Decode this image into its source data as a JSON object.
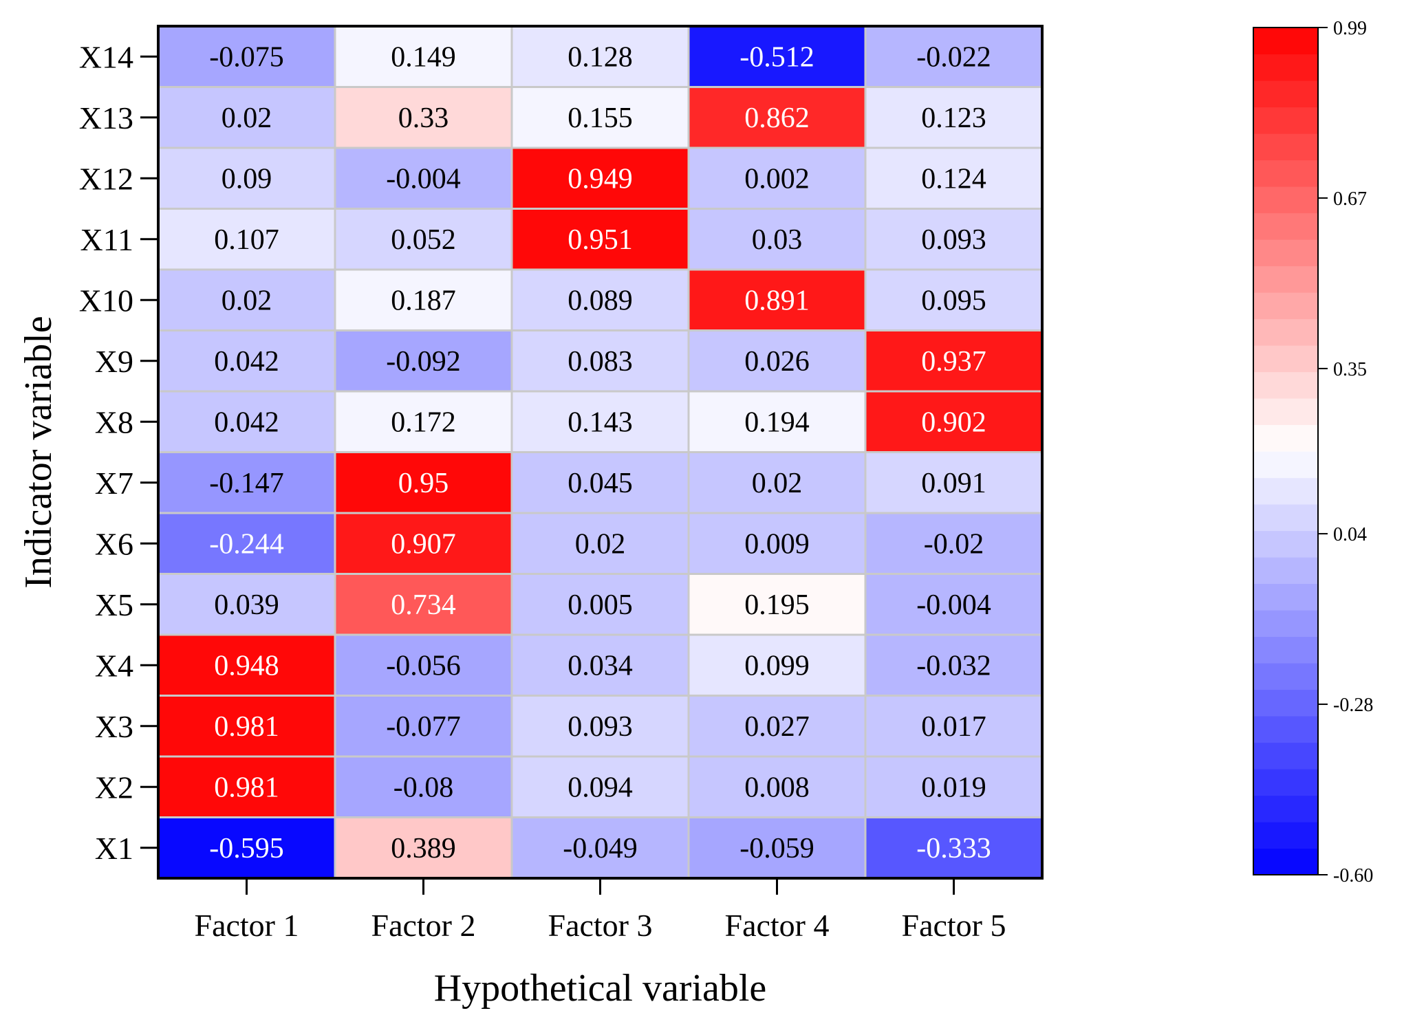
{
  "chart_data": {
    "type": "heatmap",
    "title": "",
    "xlabel": "Hypothetical variable",
    "ylabel": "Indicator variable",
    "columns": [
      "Factor 1",
      "Factor 2",
      "Factor 3",
      "Factor 4",
      "Factor 5"
    ],
    "rows": [
      "X14",
      "X13",
      "X12",
      "X11",
      "X10",
      "X9",
      "X8",
      "X7",
      "X6",
      "X5",
      "X4",
      "X3",
      "X2",
      "X1"
    ],
    "values": [
      [
        "-0.075",
        "0.149",
        "0.128",
        "-0.512",
        "-0.022"
      ],
      [
        "0.02",
        "0.33",
        "0.155",
        "0.862",
        "0.123"
      ],
      [
        "0.09",
        "-0.004",
        "0.949",
        "0.002",
        "0.124"
      ],
      [
        "0.107",
        "0.052",
        "0.951",
        "0.03",
        "0.093"
      ],
      [
        "0.02",
        "0.187",
        "0.089",
        "0.891",
        "0.095"
      ],
      [
        "0.042",
        "-0.092",
        "0.083",
        "0.026",
        "0.937"
      ],
      [
        "0.042",
        "0.172",
        "0.143",
        "0.194",
        "0.902"
      ],
      [
        "-0.147",
        "0.95",
        "0.045",
        "0.02",
        "0.091"
      ],
      [
        "-0.244",
        "0.907",
        "0.02",
        "0.009",
        "-0.02"
      ],
      [
        "0.039",
        "0.734",
        "0.005",
        "0.195",
        "-0.004"
      ],
      [
        "0.948",
        "-0.056",
        "0.034",
        "0.099",
        "-0.032"
      ],
      [
        "0.981",
        "-0.077",
        "0.093",
        "0.027",
        "0.017"
      ],
      [
        "0.981",
        "-0.08",
        "0.094",
        "0.008",
        "0.019"
      ],
      [
        "-0.595",
        "0.389",
        "-0.049",
        "-0.059",
        "-0.333"
      ]
    ],
    "colorbar": {
      "range": [
        -0.6,
        0.99
      ],
      "tick_values": [
        0.99,
        0.67,
        0.35,
        0.04,
        -0.28,
        -0.6
      ],
      "tick_labels": [
        "0.99",
        "0.67",
        "0.35",
        "0.04",
        "-0.28",
        "-0.60"
      ],
      "steps": 32,
      "colors": {
        "low": "#0000ff",
        "mid": "#ffffff",
        "high": "#ff0000"
      },
      "mid_value": 0.2
    }
  }
}
